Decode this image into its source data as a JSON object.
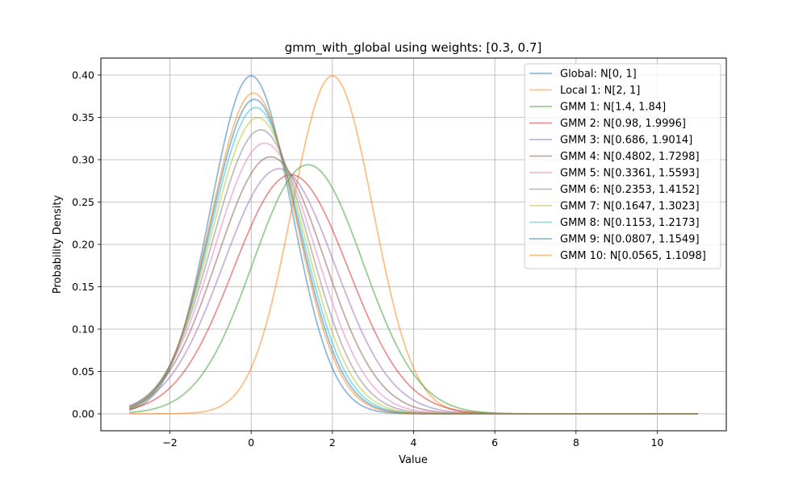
{
  "chart_data": {
    "type": "line",
    "title": "gmm_with_global using weights: [0.3, 0.7]",
    "xlabel": "Value",
    "ylabel": "Probability Density",
    "xlim": [
      -3.7,
      11.7
    ],
    "ylim": [
      -0.02,
      0.42
    ],
    "x_range": [
      -3,
      11
    ],
    "xticks": [
      -2,
      0,
      2,
      4,
      6,
      8,
      10
    ],
    "yticks": [
      0.0,
      0.05,
      0.1,
      0.15,
      0.2,
      0.25,
      0.3,
      0.35,
      0.4
    ],
    "grid": true,
    "legend_position": "top-right",
    "series": [
      {
        "name": "Global: N[0, 1]",
        "mean": 0,
        "variance": 1,
        "color": "#1f77b4"
      },
      {
        "name": "Local 1: N[2, 1]",
        "mean": 2,
        "variance": 1,
        "color": "#ff7f0e"
      },
      {
        "name": "GMM 1: N[1.4, 1.84]",
        "mean": 1.4,
        "variance": 1.84,
        "color": "#2ca02c"
      },
      {
        "name": "GMM 2: N[0.98, 1.9996]",
        "mean": 0.98,
        "variance": 1.9996,
        "color": "#d62728"
      },
      {
        "name": "GMM 3: N[0.686, 1.9014]",
        "mean": 0.686,
        "variance": 1.9014,
        "color": "#9467bd"
      },
      {
        "name": "GMM 4: N[0.4802, 1.7298]",
        "mean": 0.4802,
        "variance": 1.7298,
        "color": "#8c564b"
      },
      {
        "name": "GMM 5: N[0.3361, 1.5593]",
        "mean": 0.3361,
        "variance": 1.5593,
        "color": "#e377c2"
      },
      {
        "name": "GMM 6: N[0.2353, 1.4152]",
        "mean": 0.2353,
        "variance": 1.4152,
        "color": "#7f7f7f"
      },
      {
        "name": "GMM 7: N[0.1647, 1.3023]",
        "mean": 0.1647,
        "variance": 1.3023,
        "color": "#bcbd22"
      },
      {
        "name": "GMM 8: N[0.1153, 1.2173]",
        "mean": 0.1153,
        "variance": 1.2173,
        "color": "#17becf"
      },
      {
        "name": "GMM 9: N[0.0807, 1.1549]",
        "mean": 0.0807,
        "variance": 1.1549,
        "color": "#1f77b4"
      },
      {
        "name": "GMM 10: N[0.0565, 1.1098]",
        "mean": 0.0565,
        "variance": 1.1098,
        "color": "#ff7f0e"
      }
    ]
  }
}
